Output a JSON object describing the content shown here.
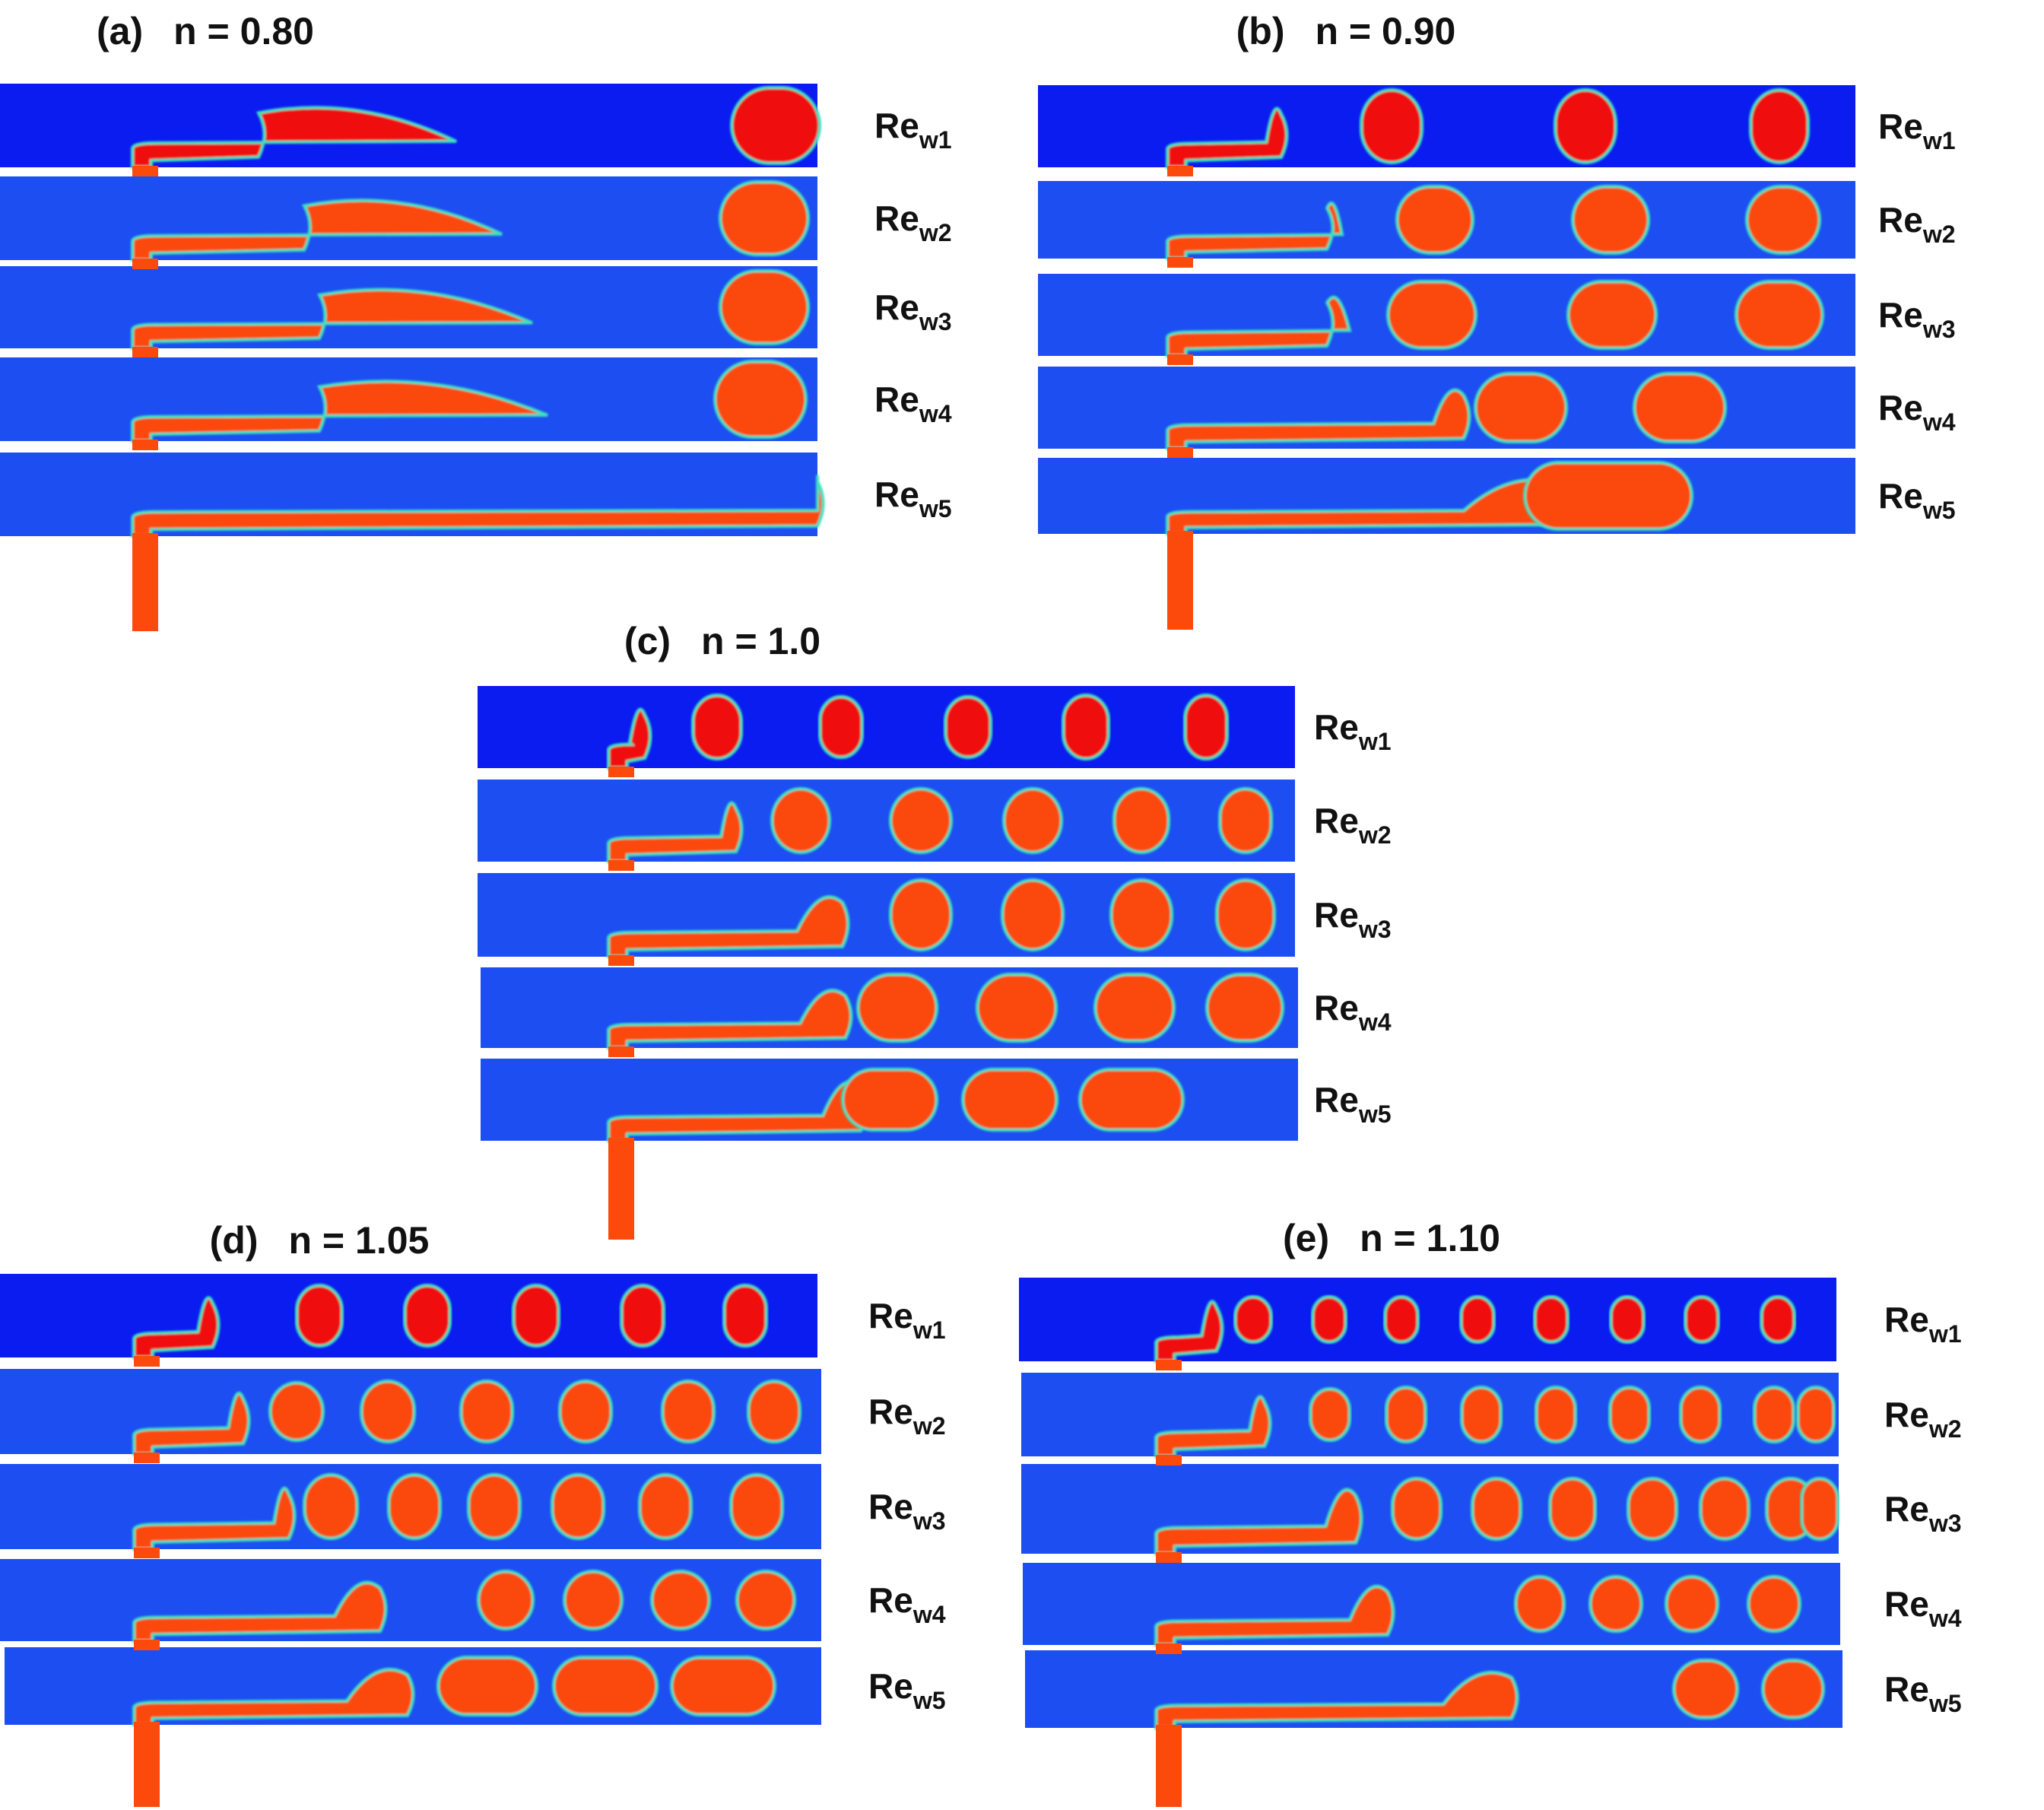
{
  "figure": {
    "panels": [
      {
        "id": "a",
        "letter": "(a)",
        "n_label": "n = 0.80",
        "n": 0.8,
        "rows": [
          {
            "re_prefix": "Re",
            "re_sub": "w1"
          },
          {
            "re_prefix": "Re",
            "re_sub": "w2"
          },
          {
            "re_prefix": "Re",
            "re_sub": "w3"
          },
          {
            "re_prefix": "Re",
            "re_sub": "w4"
          },
          {
            "re_prefix": "Re",
            "re_sub": "w5"
          }
        ]
      },
      {
        "id": "b",
        "letter": "(b)",
        "n_label": "n = 0.90",
        "n": 0.9,
        "rows": [
          {
            "re_prefix": "Re",
            "re_sub": "w1"
          },
          {
            "re_prefix": "Re",
            "re_sub": "w2"
          },
          {
            "re_prefix": "Re",
            "re_sub": "w3"
          },
          {
            "re_prefix": "Re",
            "re_sub": "w4"
          },
          {
            "re_prefix": "Re",
            "re_sub": "w5"
          }
        ]
      },
      {
        "id": "c",
        "letter": "(c)",
        "n_label": "n = 1.0",
        "n": 1.0,
        "rows": [
          {
            "re_prefix": "Re",
            "re_sub": "w1"
          },
          {
            "re_prefix": "Re",
            "re_sub": "w2"
          },
          {
            "re_prefix": "Re",
            "re_sub": "w3"
          },
          {
            "re_prefix": "Re",
            "re_sub": "w4"
          },
          {
            "re_prefix": "Re",
            "re_sub": "w5"
          }
        ]
      },
      {
        "id": "d",
        "letter": "(d)",
        "n_label": "n = 1.05",
        "n": 1.05,
        "rows": [
          {
            "re_prefix": "Re",
            "re_sub": "w1"
          },
          {
            "re_prefix": "Re",
            "re_sub": "w2"
          },
          {
            "re_prefix": "Re",
            "re_sub": "w3"
          },
          {
            "re_prefix": "Re",
            "re_sub": "w4"
          },
          {
            "re_prefix": "Re",
            "re_sub": "w5"
          }
        ]
      },
      {
        "id": "e",
        "letter": "(e)",
        "n_label": "n = 1.10",
        "n": 1.1,
        "rows": [
          {
            "re_prefix": "Re",
            "re_sub": "w1"
          },
          {
            "re_prefix": "Re",
            "re_sub": "w2"
          },
          {
            "re_prefix": "Re",
            "re_sub": "w3"
          },
          {
            "re_prefix": "Re",
            "re_sub": "w4"
          },
          {
            "re_prefix": "Re",
            "re_sub": "w5"
          }
        ]
      }
    ],
    "colors": {
      "continuous_phase_row1": "#0a1cf0",
      "continuous_phase": "#1c4ef2",
      "dispersed_phase_row1": "#f00c08",
      "dispersed_phase": "#fb4a0c",
      "interface": "#3ee0c0",
      "interface_inner": "#f4e23a"
    }
  }
}
